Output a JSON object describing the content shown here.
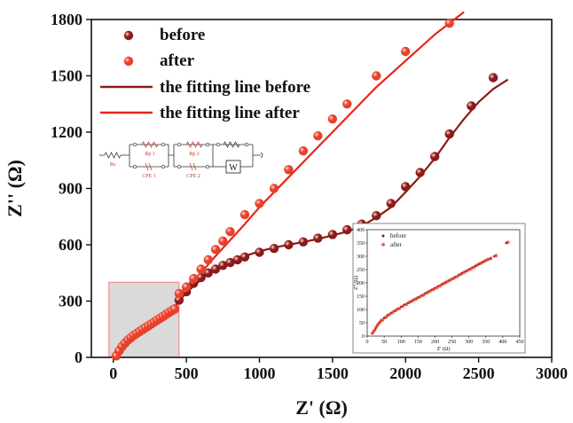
{
  "chart_data": [
    {
      "type": "scatter",
      "xlabel": "Z' (Ω)",
      "ylabel": "Z'' (Ω)",
      "xlim": [
        -150,
        3000
      ],
      "ylim": [
        0,
        1800
      ],
      "xticks": [
        0,
        500,
        1000,
        1500,
        2000,
        2500,
        3000
      ],
      "yticks": [
        0,
        300,
        600,
        900,
        1200,
        1500,
        1800
      ],
      "legend_position": "top-left",
      "series": [
        {
          "name": "before",
          "kind": "points",
          "color": "#8b1a1a",
          "x": [
            20,
            40,
            60,
            80,
            100,
            120,
            140,
            160,
            180,
            200,
            220,
            240,
            260,
            280,
            300,
            320,
            340,
            360,
            380,
            400,
            420,
            450,
            500,
            550,
            600,
            650,
            700,
            750,
            800,
            850,
            900,
            1000,
            1100,
            1200,
            1300,
            1400,
            1500,
            1600,
            1700,
            1800,
            1900,
            2000,
            2100,
            2200,
            2300,
            2450,
            2600
          ],
          "y": [
            8,
            35,
            58,
            76,
            92,
            105,
            117,
            128,
            138,
            148,
            158,
            168,
            178,
            188,
            198,
            208,
            218,
            228,
            238,
            248,
            258,
            305,
            350,
            395,
            425,
            450,
            470,
            490,
            505,
            520,
            535,
            560,
            580,
            600,
            615,
            635,
            655,
            680,
            710,
            755,
            820,
            910,
            985,
            1070,
            1190,
            1340,
            1490
          ]
        },
        {
          "name": "after",
          "kind": "points",
          "color": "#e8402a",
          "x": [
            20,
            40,
            60,
            80,
            100,
            120,
            140,
            160,
            180,
            200,
            220,
            240,
            260,
            280,
            300,
            320,
            340,
            360,
            380,
            400,
            420,
            450,
            500,
            550,
            600,
            650,
            700,
            750,
            800,
            900,
            1000,
            1100,
            1200,
            1300,
            1400,
            1500,
            1600,
            1800,
            2000,
            2300
          ],
          "y": [
            8,
            35,
            58,
            76,
            92,
            105,
            117,
            128,
            138,
            148,
            158,
            168,
            178,
            188,
            198,
            208,
            218,
            228,
            238,
            248,
            258,
            340,
            375,
            420,
            470,
            520,
            575,
            620,
            670,
            760,
            820,
            900,
            1000,
            1100,
            1180,
            1270,
            1350,
            1500,
            1630,
            1780
          ]
        },
        {
          "name": "the fitting line before",
          "kind": "line",
          "color": "#8b1a1a",
          "x": [
            0,
            20,
            50,
            100,
            200,
            300,
            400,
            450,
            500,
            600,
            700,
            800,
            900,
            1000,
            1100,
            1200,
            1300,
            1400,
            1500,
            1600,
            1700,
            1800,
            1900,
            2000,
            2100,
            2200,
            2300,
            2400,
            2500,
            2600,
            2700
          ],
          "y": [
            0,
            15,
            50,
            90,
            145,
            195,
            245,
            300,
            345,
            415,
            470,
            510,
            540,
            565,
            585,
            600,
            615,
            630,
            650,
            670,
            700,
            745,
            800,
            880,
            965,
            1060,
            1170,
            1270,
            1360,
            1430,
            1480
          ]
        },
        {
          "name": "the fitting line after",
          "kind": "line",
          "color": "#e8251a",
          "x": [
            0,
            20,
            50,
            100,
            200,
            300,
            400,
            450,
            500,
            600,
            700,
            800,
            900,
            1000,
            1100,
            1200,
            1300,
            1400,
            1500,
            1600,
            1700,
            1800,
            1900,
            2000,
            2100,
            2200,
            2300,
            2400
          ],
          "y": [
            0,
            15,
            50,
            90,
            145,
            195,
            245,
            305,
            360,
            450,
            540,
            625,
            710,
            800,
            880,
            960,
            1040,
            1120,
            1200,
            1280,
            1360,
            1440,
            1510,
            1580,
            1650,
            1720,
            1780,
            1840
          ]
        }
      ]
    },
    {
      "type": "scatter",
      "xlabel": "Z' (Ω)",
      "ylabel": "Z'' (Ω)",
      "xlim": [
        0,
        450
      ],
      "ylim": [
        0,
        400
      ],
      "xticks": [
        0,
        50,
        100,
        150,
        200,
        250,
        300,
        350,
        400,
        450
      ],
      "yticks": [
        0,
        50,
        100,
        150,
        200,
        250,
        300,
        350,
        400
      ],
      "legend_position": "top-left",
      "series": [
        {
          "name": "before",
          "color": "#8b1a1a",
          "x": [
            15,
            20,
            25,
            30,
            35,
            40,
            50,
            60,
            70,
            80,
            90,
            100,
            110,
            120,
            130,
            140,
            150,
            160,
            170,
            180,
            190,
            200,
            210,
            220,
            230,
            240,
            250,
            260,
            270,
            280,
            290,
            300,
            310,
            320,
            330,
            340,
            350,
            360,
            375,
            410
          ],
          "y": [
            10,
            20,
            30,
            40,
            50,
            58,
            68,
            78,
            86,
            94,
            102,
            110,
            118,
            124,
            131,
            138,
            145,
            152,
            159,
            166,
            173,
            180,
            187,
            194,
            201,
            208,
            215,
            222,
            229,
            236,
            243,
            250,
            257,
            264,
            271,
            278,
            285,
            290,
            300,
            350
          ]
        },
        {
          "name": "after",
          "color": "#e8402a",
          "x": [
            16,
            22,
            27,
            32,
            38,
            45,
            55,
            65,
            75,
            85,
            95,
            105,
            115,
            125,
            135,
            145,
            155,
            165,
            175,
            185,
            195,
            205,
            215,
            225,
            235,
            245,
            255,
            265,
            275,
            285,
            295,
            305,
            315,
            325,
            335,
            345,
            355,
            365,
            380,
            415
          ],
          "y": [
            12,
            22,
            33,
            43,
            52,
            60,
            70,
            80,
            88,
            96,
            104,
            112,
            119,
            126,
            133,
            140,
            147,
            154,
            161,
            168,
            175,
            182,
            189,
            196,
            203,
            210,
            217,
            224,
            231,
            238,
            245,
            252,
            259,
            266,
            273,
            280,
            287,
            292,
            302,
            352
          ]
        }
      ]
    }
  ],
  "circuit": {
    "labels": {
      "rs": "Rs",
      "rp1": "Rp 1",
      "rp2": "Rp 2",
      "cpe1": "CPE 1",
      "cpe2": "CPE 2",
      "w": "W"
    }
  },
  "colors": {
    "before": "#8b1a1a",
    "after": "#e8402a",
    "zoom_box_fill": "#d3d3d3",
    "zoom_box_stroke": "#f08080"
  }
}
